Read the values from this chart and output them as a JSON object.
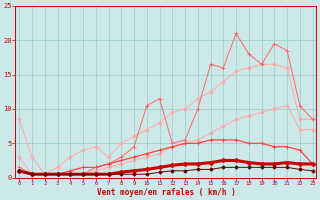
{
  "x": [
    0,
    1,
    2,
    3,
    4,
    5,
    6,
    7,
    8,
    9,
    10,
    11,
    12,
    13,
    14,
    15,
    16,
    17,
    18,
    19,
    20,
    21,
    22,
    23
  ],
  "line_lightest": [
    8.5,
    3.0,
    0.5,
    1.5,
    3.0,
    4.0,
    4.5,
    3.0,
    5.0,
    6.0,
    7.0,
    8.0,
    9.5,
    10.0,
    11.5,
    12.5,
    14.0,
    15.5,
    16.0,
    16.5,
    16.5,
    16.0,
    8.5,
    8.5
  ],
  "line_light": [
    3.0,
    0.5,
    0.5,
    0.5,
    0.5,
    0.5,
    1.0,
    1.5,
    2.0,
    2.5,
    3.0,
    3.5,
    4.5,
    5.0,
    5.5,
    6.5,
    7.5,
    8.5,
    9.0,
    9.5,
    10.0,
    10.5,
    7.0,
    7.0
  ],
  "line_med_jagged": [
    1.5,
    0.5,
    0.5,
    0.5,
    0.5,
    0.5,
    1.5,
    2.0,
    3.0,
    4.5,
    10.5,
    11.5,
    5.0,
    5.5,
    10.0,
    16.5,
    16.0,
    21.0,
    18.0,
    16.5,
    19.5,
    18.5,
    10.5,
    8.5
  ],
  "line_med_smooth": [
    1.0,
    0.5,
    0.5,
    0.5,
    1.0,
    1.5,
    1.5,
    2.0,
    2.5,
    3.0,
    3.5,
    4.0,
    4.5,
    5.0,
    5.0,
    5.5,
    5.5,
    5.5,
    5.0,
    5.0,
    4.5,
    4.5,
    4.0,
    2.0
  ],
  "line_bold_red": [
    1.0,
    0.5,
    0.5,
    0.5,
    0.5,
    0.5,
    0.5,
    0.5,
    0.8,
    1.0,
    1.2,
    1.5,
    1.8,
    2.0,
    2.0,
    2.2,
    2.5,
    2.5,
    2.2,
    2.0,
    2.0,
    2.2,
    2.0,
    2.0
  ],
  "line_dark": [
    1.0,
    0.5,
    0.5,
    0.5,
    0.5,
    0.5,
    0.5,
    0.5,
    0.5,
    0.5,
    0.5,
    0.8,
    1.0,
    1.0,
    1.2,
    1.2,
    1.5,
    1.5,
    1.5,
    1.5,
    1.5,
    1.5,
    1.2,
    1.0
  ],
  "bg_color": "#cce8e8",
  "grid_color": "#99cccc",
  "xlabel": "Vent moyen/en rafales ( km/h )",
  "ylim": [
    0,
    25
  ],
  "xlim": [
    0,
    23
  ]
}
